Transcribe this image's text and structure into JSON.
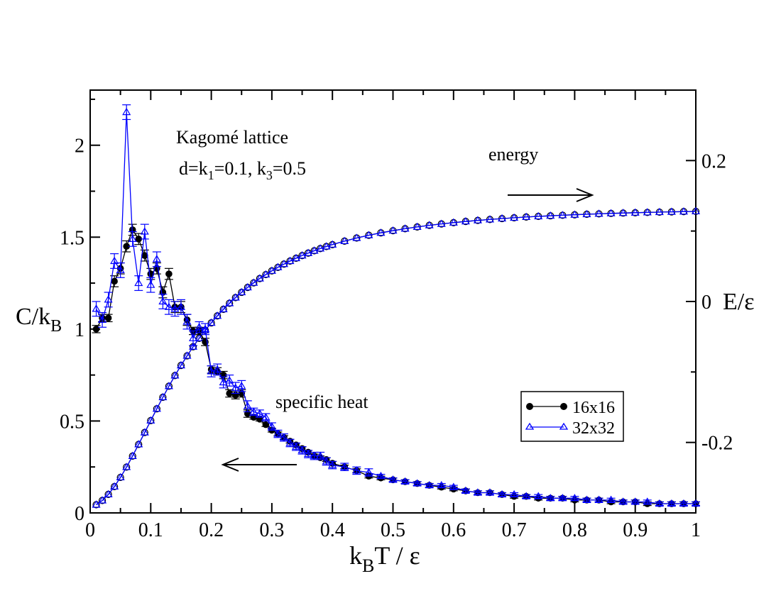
{
  "chart_data": {
    "type": "scatter",
    "title": "",
    "annotations": {
      "lattice_title": "Kagomé lattice",
      "params_d": "d=k",
      "params_k1_sub": "1",
      "params_mid": "=0.1,  k",
      "params_k3_sub": "3",
      "params_end": "=0.5",
      "energy_label": "energy",
      "specific_heat_label": "specific heat"
    },
    "xlabel": {
      "main_k": "k",
      "sub": "B",
      "rest": "T / ε"
    },
    "ylabel_left": {
      "main": "C/k",
      "sub": "B"
    },
    "ylabel_right": "E/ε",
    "xlim": [
      0,
      1
    ],
    "ylim_left": [
      0,
      2.3
    ],
    "ylim_right": [
      -0.3,
      0.3
    ],
    "x_ticks": [
      "0",
      "0.1",
      "0.2",
      "0.3",
      "0.4",
      "0.5",
      "0.6",
      "0.7",
      "0.8",
      "0.9",
      "1"
    ],
    "y_left_ticks": [
      "0",
      "0.5",
      "1",
      "1.5",
      "2"
    ],
    "y_right_ticks": [
      "-0.2",
      "0",
      "0.2"
    ],
    "legend_position": "center-right",
    "colors": {
      "series16": "#000000",
      "series32": "#0000ff"
    },
    "series": [
      {
        "name": "16x16",
        "quantity": "specific heat",
        "axis": "left",
        "marker": "filled-circle",
        "x": [
          0.01,
          0.02,
          0.03,
          0.04,
          0.05,
          0.06,
          0.07,
          0.08,
          0.09,
          0.1,
          0.11,
          0.12,
          0.13,
          0.14,
          0.15,
          0.16,
          0.17,
          0.18,
          0.19,
          0.2,
          0.21,
          0.22,
          0.23,
          0.24,
          0.25,
          0.26,
          0.27,
          0.28,
          0.29,
          0.3,
          0.31,
          0.32,
          0.33,
          0.34,
          0.35,
          0.36,
          0.37,
          0.38,
          0.39,
          0.4,
          0.42,
          0.44,
          0.46,
          0.48,
          0.5,
          0.52,
          0.54,
          0.56,
          0.58,
          0.6,
          0.62,
          0.64,
          0.66,
          0.68,
          0.7,
          0.72,
          0.74,
          0.76,
          0.78,
          0.8,
          0.82,
          0.84,
          0.86,
          0.88,
          0.9,
          0.92,
          0.94,
          0.96,
          0.98,
          1.0
        ],
        "y": [
          1.0,
          1.06,
          1.06,
          1.26,
          1.33,
          1.45,
          1.54,
          1.49,
          1.4,
          1.3,
          1.33,
          1.2,
          1.3,
          1.12,
          1.12,
          1.05,
          0.99,
          0.99,
          0.93,
          0.78,
          0.77,
          0.75,
          0.65,
          0.64,
          0.65,
          0.54,
          0.52,
          0.51,
          0.48,
          0.45,
          0.43,
          0.41,
          0.39,
          0.37,
          0.35,
          0.33,
          0.31,
          0.3,
          0.29,
          0.27,
          0.25,
          0.23,
          0.2,
          0.19,
          0.18,
          0.17,
          0.16,
          0.15,
          0.14,
          0.13,
          0.12,
          0.11,
          0.11,
          0.1,
          0.09,
          0.09,
          0.08,
          0.08,
          0.08,
          0.07,
          0.07,
          0.07,
          0.06,
          0.06,
          0.06,
          0.05,
          0.05,
          0.05,
          0.05,
          0.05
        ],
        "err": [
          0.02,
          0.02,
          0.02,
          0.03,
          0.03,
          0.03,
          0.03,
          0.03,
          0.03,
          0.03,
          0.03,
          0.03,
          0.03,
          0.03,
          0.03,
          0.03,
          0.02,
          0.02,
          0.02,
          0.02,
          0.02,
          0.02,
          0.02,
          0.02,
          0.02,
          0.02,
          0.01,
          0.01,
          0.01,
          0.01,
          0.01,
          0.01,
          0.01,
          0.01,
          0.01,
          0.01,
          0.01,
          0.01,
          0.01,
          0.01,
          0.01,
          0.01,
          0.01,
          0.01,
          0.01,
          0.01,
          0.01,
          0.01,
          0.01,
          0.01,
          0.01,
          0.01,
          0.01,
          0.01,
          0.01,
          0.01,
          0.01,
          0.01,
          0.01,
          0.01,
          0.01,
          0.01,
          0.01,
          0.01,
          0.01,
          0.01,
          0.01,
          0.01,
          0.01,
          0.01
        ]
      },
      {
        "name": "32x32",
        "quantity": "specific heat",
        "axis": "left",
        "marker": "open-triangle",
        "x": [
          0.01,
          0.02,
          0.03,
          0.04,
          0.05,
          0.06,
          0.07,
          0.08,
          0.09,
          0.1,
          0.11,
          0.12,
          0.13,
          0.14,
          0.15,
          0.16,
          0.17,
          0.18,
          0.19,
          0.2,
          0.21,
          0.22,
          0.23,
          0.24,
          0.25,
          0.26,
          0.27,
          0.28,
          0.29,
          0.3,
          0.31,
          0.32,
          0.33,
          0.34,
          0.35,
          0.36,
          0.37,
          0.38,
          0.39,
          0.4,
          0.42,
          0.44,
          0.46,
          0.48,
          0.5,
          0.52,
          0.54,
          0.56,
          0.58,
          0.6,
          0.62,
          0.64,
          0.66,
          0.68,
          0.7,
          0.72,
          0.74,
          0.76,
          0.78,
          0.8,
          0.82,
          0.84,
          0.86,
          0.88,
          0.9,
          0.92,
          0.94,
          0.96,
          0.98,
          1.0
        ],
        "y": [
          1.11,
          1.05,
          1.16,
          1.37,
          1.32,
          2.18,
          1.49,
          1.25,
          1.53,
          1.24,
          1.38,
          1.15,
          1.12,
          1.11,
          1.12,
          1.04,
          0.95,
          1.01,
          1.0,
          0.77,
          0.78,
          0.71,
          0.72,
          0.68,
          0.69,
          0.58,
          0.55,
          0.54,
          0.52,
          0.47,
          0.43,
          0.41,
          0.38,
          0.36,
          0.34,
          0.32,
          0.31,
          0.31,
          0.28,
          0.26,
          0.25,
          0.23,
          0.22,
          0.2,
          0.18,
          0.17,
          0.16,
          0.15,
          0.15,
          0.14,
          0.12,
          0.11,
          0.11,
          0.1,
          0.1,
          0.09,
          0.09,
          0.08,
          0.08,
          0.08,
          0.07,
          0.07,
          0.07,
          0.06,
          0.06,
          0.06,
          0.05,
          0.05,
          0.05,
          0.05
        ],
        "err": [
          0.04,
          0.04,
          0.04,
          0.04,
          0.04,
          0.04,
          0.04,
          0.04,
          0.04,
          0.04,
          0.04,
          0.04,
          0.04,
          0.04,
          0.04,
          0.04,
          0.04,
          0.03,
          0.03,
          0.03,
          0.03,
          0.03,
          0.03,
          0.03,
          0.03,
          0.03,
          0.02,
          0.02,
          0.02,
          0.02,
          0.02,
          0.02,
          0.02,
          0.02,
          0.02,
          0.02,
          0.02,
          0.02,
          0.02,
          0.02,
          0.02,
          0.02,
          0.02,
          0.01,
          0.01,
          0.01,
          0.01,
          0.01,
          0.01,
          0.01,
          0.01,
          0.01,
          0.01,
          0.01,
          0.01,
          0.01,
          0.01,
          0.01,
          0.01,
          0.01,
          0.01,
          0.01,
          0.01,
          0.01,
          0.01,
          0.01,
          0.01,
          0.01,
          0.01,
          0.01
        ]
      },
      {
        "name": "16x16",
        "quantity": "energy",
        "axis": "right",
        "marker": "open-circle",
        "x": [
          0.01,
          0.02,
          0.03,
          0.04,
          0.05,
          0.06,
          0.07,
          0.08,
          0.09,
          0.1,
          0.11,
          0.12,
          0.13,
          0.14,
          0.15,
          0.16,
          0.17,
          0.18,
          0.19,
          0.2,
          0.21,
          0.22,
          0.23,
          0.24,
          0.25,
          0.26,
          0.27,
          0.28,
          0.29,
          0.3,
          0.31,
          0.32,
          0.33,
          0.34,
          0.35,
          0.36,
          0.37,
          0.38,
          0.39,
          0.4,
          0.42,
          0.44,
          0.46,
          0.48,
          0.5,
          0.52,
          0.54,
          0.56,
          0.58,
          0.6,
          0.62,
          0.64,
          0.66,
          0.68,
          0.7,
          0.72,
          0.74,
          0.76,
          0.78,
          0.8,
          0.82,
          0.84,
          0.86,
          0.88,
          0.9,
          0.92,
          0.94,
          0.96,
          0.98,
          1.0
        ],
        "y": [
          -0.2884,
          -0.2824,
          -0.2737,
          -0.2627,
          -0.2496,
          -0.235,
          -0.2193,
          -0.2028,
          -0.1859,
          -0.169,
          -0.1523,
          -0.1359,
          -0.1202,
          -0.1051,
          -0.0907,
          -0.0771,
          -0.0642,
          -0.0522,
          -0.0409,
          -0.0303,
          -0.0204,
          -0.0111,
          -0.0025,
          0.0055,
          0.013,
          0.02,
          0.0265,
          0.0326,
          0.0382,
          0.0435,
          0.0485,
          0.0531,
          0.0574,
          0.0614,
          0.0652,
          0.0687,
          0.072,
          0.0751,
          0.078,
          0.0807,
          0.0857,
          0.0901,
          0.094,
          0.0974,
          0.1005,
          0.1033,
          0.1058,
          0.1081,
          0.1101,
          0.1119,
          0.1136,
          0.1151,
          0.1164,
          0.1177,
          0.1188,
          0.1199,
          0.1208,
          0.1216,
          0.1224,
          0.1231,
          0.1238,
          0.1244,
          0.125,
          0.1255,
          0.126,
          0.1264,
          0.1268,
          0.1272,
          0.1276,
          0.1279
        ]
      },
      {
        "name": "32x32",
        "quantity": "energy",
        "axis": "right",
        "marker": "open-triangle",
        "x": [
          0.01,
          0.02,
          0.03,
          0.04,
          0.05,
          0.06,
          0.07,
          0.08,
          0.09,
          0.1,
          0.11,
          0.12,
          0.13,
          0.14,
          0.15,
          0.16,
          0.17,
          0.18,
          0.19,
          0.2,
          0.21,
          0.22,
          0.23,
          0.24,
          0.25,
          0.26,
          0.27,
          0.28,
          0.29,
          0.3,
          0.31,
          0.32,
          0.33,
          0.34,
          0.35,
          0.36,
          0.37,
          0.38,
          0.39,
          0.4,
          0.42,
          0.44,
          0.46,
          0.48,
          0.5,
          0.52,
          0.54,
          0.56,
          0.58,
          0.6,
          0.62,
          0.64,
          0.66,
          0.68,
          0.7,
          0.72,
          0.74,
          0.76,
          0.78,
          0.8,
          0.82,
          0.84,
          0.86,
          0.88,
          0.9,
          0.92,
          0.94,
          0.96,
          0.98,
          1.0
        ],
        "y": [
          -0.2884,
          -0.2824,
          -0.2737,
          -0.2627,
          -0.2496,
          -0.235,
          -0.2193,
          -0.2028,
          -0.1859,
          -0.169,
          -0.1523,
          -0.1359,
          -0.1202,
          -0.1051,
          -0.0907,
          -0.0771,
          -0.0642,
          -0.0522,
          -0.0409,
          -0.0303,
          -0.0204,
          -0.0111,
          -0.0025,
          0.0055,
          0.013,
          0.02,
          0.0265,
          0.0326,
          0.0382,
          0.0435,
          0.0485,
          0.0531,
          0.0574,
          0.0614,
          0.0652,
          0.0687,
          0.072,
          0.0751,
          0.078,
          0.0807,
          0.0857,
          0.0901,
          0.094,
          0.0974,
          0.1005,
          0.1033,
          0.1058,
          0.1081,
          0.1101,
          0.1119,
          0.1136,
          0.1151,
          0.1164,
          0.1177,
          0.1188,
          0.1199,
          0.1208,
          0.1216,
          0.1224,
          0.1231,
          0.1238,
          0.1244,
          0.125,
          0.1255,
          0.126,
          0.1264,
          0.1268,
          0.1272,
          0.1276,
          0.1279
        ]
      }
    ]
  }
}
